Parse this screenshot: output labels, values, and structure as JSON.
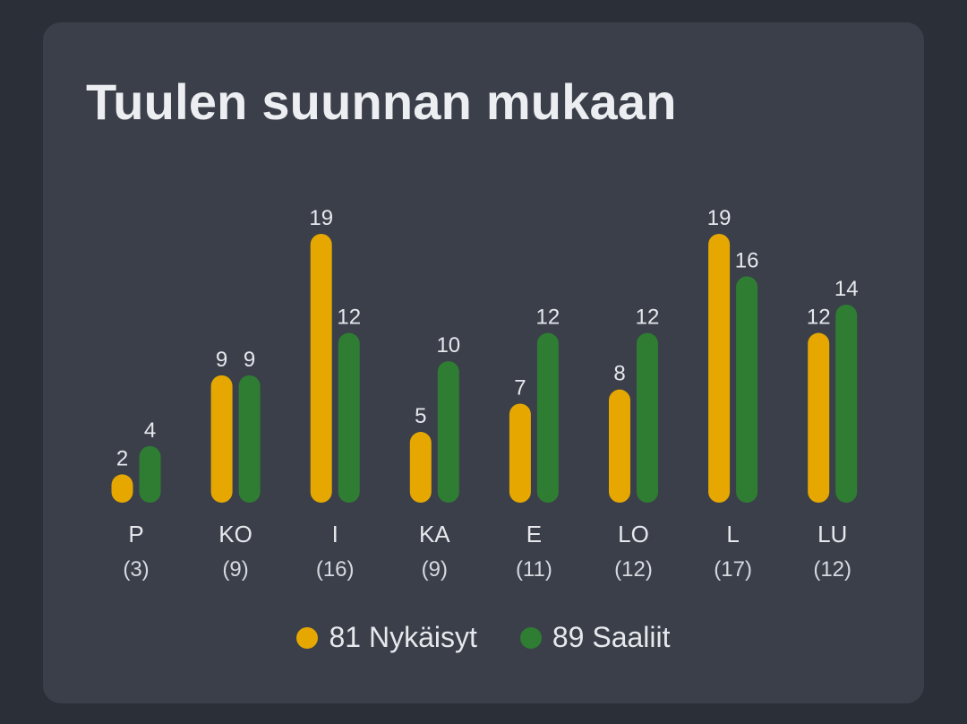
{
  "title": "Tuulen suunnan mukaan",
  "colors": {
    "nykaisyt": "#e6a800",
    "saaliit": "#2f7d32"
  },
  "legend": [
    {
      "label": "81 Nykäisyt",
      "color": "#e6a800"
    },
    {
      "label": "89 Saaliit",
      "color": "#2f7d32"
    }
  ],
  "chart_data": {
    "type": "bar",
    "title": "Tuulen suunnan mukaan",
    "categories": [
      "P",
      "KO",
      "I",
      "KA",
      "E",
      "LO",
      "L",
      "LU"
    ],
    "counts": [
      "(3)",
      "(9)",
      "(16)",
      "(9)",
      "(11)",
      "(12)",
      "(17)",
      "(12)"
    ],
    "series": [
      {
        "name": "81 Nykäisyt",
        "values": [
          2,
          9,
          19,
          5,
          7,
          8,
          19,
          12
        ],
        "color": "#e6a800"
      },
      {
        "name": "89 Saaliit",
        "values": [
          4,
          9,
          12,
          10,
          12,
          12,
          16,
          14
        ],
        "color": "#2f7d32"
      }
    ],
    "ylim": [
      0,
      19
    ],
    "grid": false,
    "legend_position": "bottom-center"
  }
}
